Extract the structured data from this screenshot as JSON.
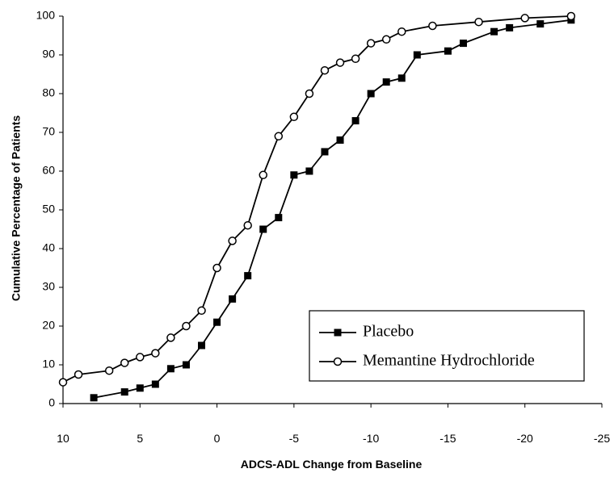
{
  "chart_data": {
    "type": "line",
    "title": "",
    "xlabel": "ADCS-ADL Change from Baseline",
    "ylabel": "Cumulative Percentage of Patients",
    "xlim": [
      10,
      -25
    ],
    "ylim": [
      0,
      100
    ],
    "x_ticks": [
      "10",
      "5",
      "0",
      "-5",
      "-10",
      "-15",
      "-20",
      "-25"
    ],
    "x_tick_values": [
      10,
      5,
      0,
      -5,
      -10,
      -15,
      -20,
      -25
    ],
    "y_ticks": [
      "0",
      "10",
      "20",
      "30",
      "40",
      "50",
      "60",
      "70",
      "80",
      "90",
      "100"
    ],
    "y_tick_values": [
      0,
      10,
      20,
      30,
      40,
      50,
      60,
      70,
      80,
      90,
      100
    ],
    "x_axis_reversed": true,
    "grid": false,
    "legend_position": "bottom-right",
    "series": [
      {
        "name": "Placebo",
        "marker": "filled-square",
        "color": "#000000",
        "points": [
          {
            "x": 8,
            "y": 1.5
          },
          {
            "x": 6,
            "y": 3
          },
          {
            "x": 5,
            "y": 4
          },
          {
            "x": 4,
            "y": 5
          },
          {
            "x": 3,
            "y": 9
          },
          {
            "x": 2,
            "y": 10
          },
          {
            "x": 1,
            "y": 15
          },
          {
            "x": 0,
            "y": 21
          },
          {
            "x": -1,
            "y": 27
          },
          {
            "x": -2,
            "y": 33
          },
          {
            "x": -3,
            "y": 45
          },
          {
            "x": -4,
            "y": 48
          },
          {
            "x": -5,
            "y": 59
          },
          {
            "x": -6,
            "y": 60
          },
          {
            "x": -7,
            "y": 65
          },
          {
            "x": -8,
            "y": 68
          },
          {
            "x": -9,
            "y": 73
          },
          {
            "x": -10,
            "y": 80
          },
          {
            "x": -11,
            "y": 83
          },
          {
            "x": -12,
            "y": 84
          },
          {
            "x": -13,
            "y": 90
          },
          {
            "x": -15,
            "y": 91
          },
          {
            "x": -16,
            "y": 93
          },
          {
            "x": -18,
            "y": 96
          },
          {
            "x": -19,
            "y": 97
          },
          {
            "x": -21,
            "y": 98
          },
          {
            "x": -23,
            "y": 99
          }
        ]
      },
      {
        "name": "Memantine Hydrochloride",
        "marker": "open-circle",
        "color": "#000000",
        "points": [
          {
            "x": 10,
            "y": 5.5
          },
          {
            "x": 9,
            "y": 7.5
          },
          {
            "x": 7,
            "y": 8.5
          },
          {
            "x": 6,
            "y": 10.5
          },
          {
            "x": 5,
            "y": 12
          },
          {
            "x": 4,
            "y": 13
          },
          {
            "x": 3,
            "y": 17
          },
          {
            "x": 2,
            "y": 20
          },
          {
            "x": 1,
            "y": 24
          },
          {
            "x": 0,
            "y": 35
          },
          {
            "x": -1,
            "y": 42
          },
          {
            "x": -2,
            "y": 46
          },
          {
            "x": -3,
            "y": 59
          },
          {
            "x": -4,
            "y": 69
          },
          {
            "x": -5,
            "y": 74
          },
          {
            "x": -6,
            "y": 80
          },
          {
            "x": -7,
            "y": 86
          },
          {
            "x": -8,
            "y": 88
          },
          {
            "x": -9,
            "y": 89
          },
          {
            "x": -10,
            "y": 93
          },
          {
            "x": -11,
            "y": 94
          },
          {
            "x": -12,
            "y": 96
          },
          {
            "x": -14,
            "y": 97.5
          },
          {
            "x": -17,
            "y": 98.5
          },
          {
            "x": -20,
            "y": 99.5
          },
          {
            "x": -23,
            "y": 100
          }
        ]
      }
    ]
  }
}
